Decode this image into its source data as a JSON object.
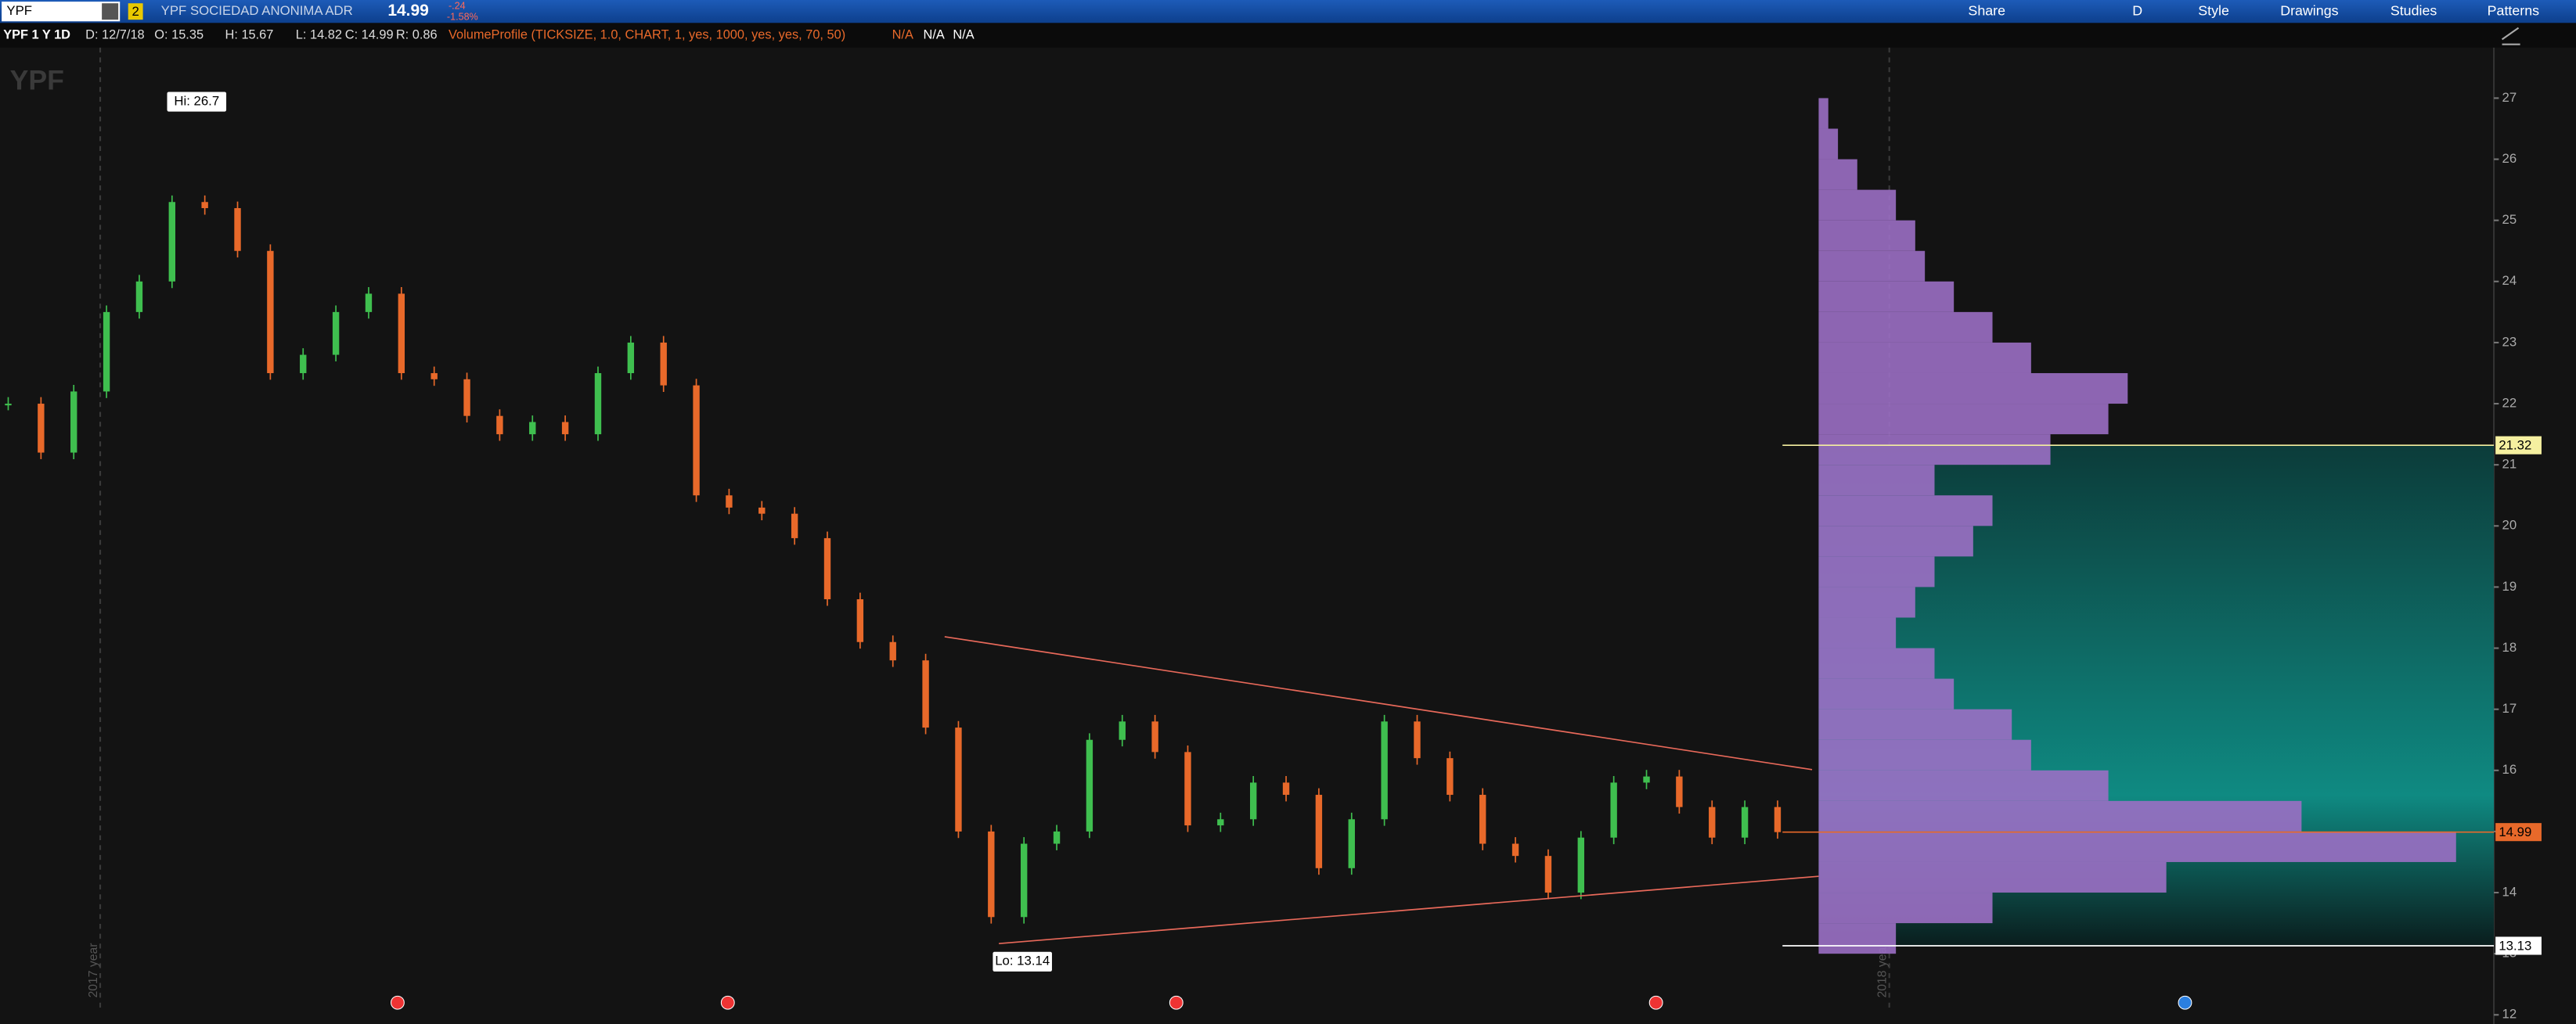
{
  "toolbar": {
    "symbol": "YPF",
    "link_badge": "2",
    "company": "YPF SOCIEDAD ANONIMA ADR",
    "last": 14.99,
    "change": "-.24",
    "change_pct": "-1.58%",
    "buttons": [
      "Share",
      "D",
      "Style",
      "Drawings",
      "Studies",
      "Patterns"
    ]
  },
  "infobar": {
    "chart_name": "YPF 1 Y 1D",
    "date": "D: 12/7/18",
    "open": "O: 15.35",
    "high": "H: 15.67",
    "low": "L: 14.82",
    "close": "C: 14.99",
    "range": "R: 0.86",
    "study": "VolumeProfile (TICKSIZE, 1.0, CHART, 1, yes, 1000, yes, yes, 70, 50)",
    "na": [
      "N/A",
      "N/A",
      "N/A"
    ]
  },
  "chart_data": {
    "type": "candlestick",
    "watermark": "YPF",
    "year_labels": [
      "2017 year",
      "2018 year"
    ],
    "ylim": [
      11.85,
      27.8
    ],
    "yticks": [
      12,
      13,
      14,
      15,
      16,
      17,
      18,
      19,
      20,
      21,
      22,
      23,
      24,
      25,
      26,
      27
    ],
    "hi_label": "Hi: 26.7",
    "lo_label": "Lo: 13.14",
    "closes": [
      22,
      21.2,
      22.2,
      23.5,
      24,
      25.3,
      25.2,
      24.5,
      22.5,
      22.8,
      23.5,
      23.8,
      22.5,
      22.4,
      21.8,
      21.5,
      21.7,
      21.5,
      22.5,
      23,
      22.3,
      20.5,
      20.3,
      20.2,
      19.8,
      18.8,
      18.1,
      17.8,
      16.7,
      15,
      13.6,
      14.8,
      15,
      16.5,
      16.8,
      16.3,
      15.1,
      15.2,
      15.8,
      15.6,
      14.4,
      15.2,
      16.8,
      16.2,
      15.6,
      14.8,
      14.6,
      14,
      14.9,
      15.8,
      15.9,
      15.4,
      14.9,
      15.4,
      14.99
    ],
    "up_color": "#3fbf4f",
    "down_color": "#e8692a",
    "price_markers": [
      {
        "value": 21.32,
        "color": "#f5f0a0"
      },
      {
        "value": 14.99,
        "color": "#e8692a"
      },
      {
        "value": 13.13,
        "color": "#ffffff"
      }
    ],
    "profile": {
      "bins": [
        13,
        13.5,
        14,
        14.5,
        15,
        15.5,
        16,
        16.5,
        17,
        17.5,
        18,
        18.5,
        19,
        19.5,
        20,
        20.5,
        21,
        21.5,
        22,
        22.5,
        23,
        23.5,
        24,
        24.5,
        25,
        25.5,
        26,
        26.5,
        27
      ],
      "volumes": [
        40,
        90,
        180,
        330,
        250,
        150,
        110,
        100,
        70,
        60,
        40,
        50,
        60,
        80,
        90,
        60,
        120,
        150,
        160,
        110,
        90,
        70,
        55,
        50,
        40,
        20,
        10,
        5
      ],
      "color": "#9b6fc4",
      "value_area_color": "#0f7f78"
    }
  }
}
